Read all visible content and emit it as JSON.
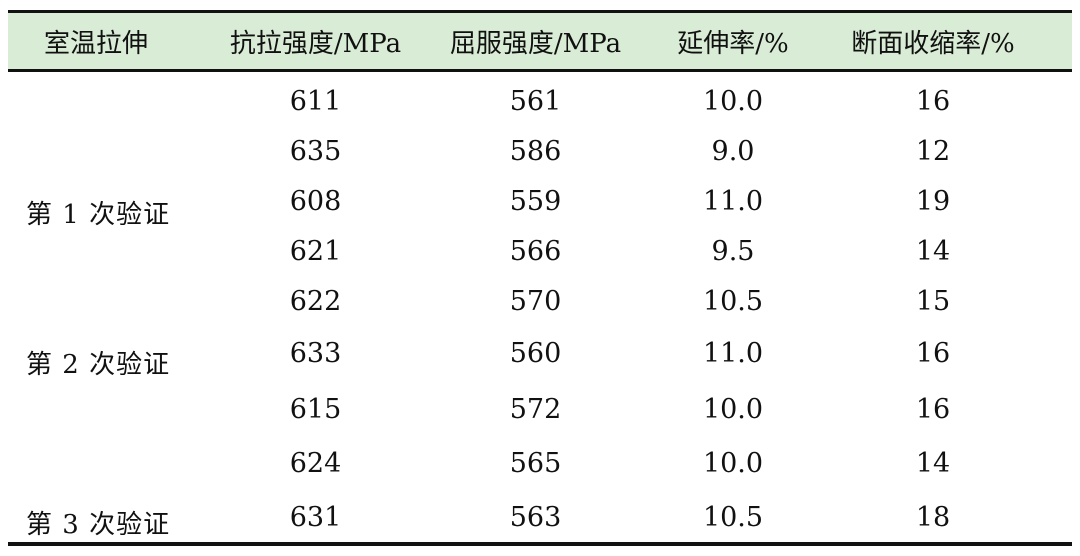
{
  "table": {
    "headers": [
      "室温拉伸",
      "抗拉强度/MPa",
      "屈服强度/MPa",
      "延伸率/%",
      "断面收缩率/%"
    ],
    "groups": [
      {
        "label": "第 1 次验证",
        "rows": [
          [
            "611",
            "561",
            "10.0",
            "16"
          ],
          [
            "635",
            "586",
            "9.0",
            "12"
          ],
          [
            "608",
            "559",
            "11.0",
            "19"
          ]
        ]
      },
      {
        "label": "第 2 次验证",
        "rows": [
          [
            "621",
            "566",
            "9.5",
            "14"
          ],
          [
            "622",
            "570",
            "10.5",
            "15"
          ],
          [
            "633",
            "560",
            "11.0",
            "16"
          ]
        ]
      },
      {
        "label": "第 3 次验证",
        "rows": [
          [
            "615",
            "572",
            "10.0",
            "16"
          ],
          [
            "624",
            "565",
            "10.0",
            "14"
          ],
          [
            "631",
            "563",
            "10.5",
            "18"
          ]
        ]
      }
    ]
  },
  "colors": {
    "header_bg": "#d9ecd5",
    "rule": "#111111",
    "text": "#111111"
  }
}
